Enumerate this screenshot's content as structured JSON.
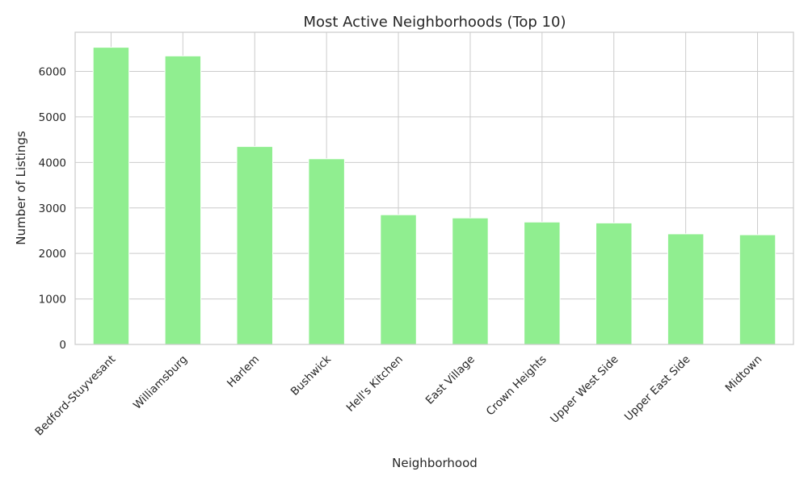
{
  "chart_data": {
    "type": "bar",
    "title": "Most Active Neighborhoods (Top 10)",
    "xlabel": "Neighborhood",
    "ylabel": "Number of Listings",
    "categories": [
      "Bedford-Stuyvesant",
      "Williamsburg",
      "Harlem",
      "Bushwick",
      "Hell's Kitchen",
      "East Village",
      "Crown Heights",
      "Upper West Side",
      "Upper East Side",
      "Midtown"
    ],
    "values": [
      6530,
      6340,
      4350,
      4080,
      2850,
      2780,
      2690,
      2670,
      2430,
      2410
    ],
    "ylim": [
      0,
      6860
    ],
    "yticks": [
      0,
      1000,
      2000,
      3000,
      4000,
      5000,
      6000
    ],
    "grid": true,
    "bar_color": "#90ee90"
  }
}
